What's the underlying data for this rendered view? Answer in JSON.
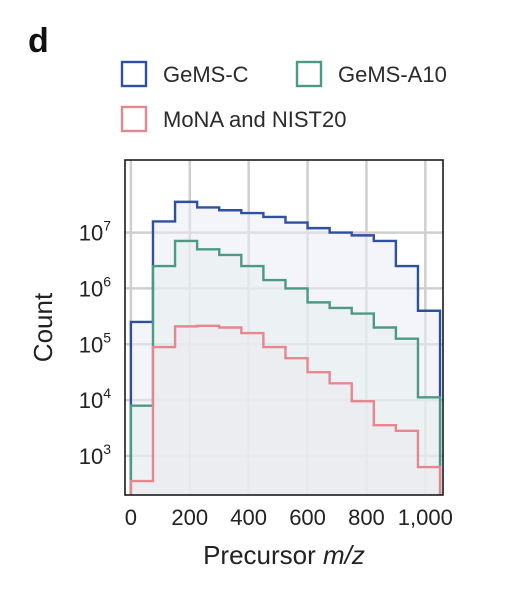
{
  "panel_label": "d",
  "chart_data": {
    "type": "histogram",
    "title": "",
    "xlabel_prefix": "Precursor ",
    "xlabel_italic": "m/z",
    "ylabel": "Count",
    "yscale": "log",
    "xlim": [
      -20,
      1060
    ],
    "ylim_log10": [
      2.3,
      8.3
    ],
    "grid": true,
    "legend_position": "top",
    "x_ticks": [
      0,
      200,
      400,
      600,
      800,
      1000
    ],
    "x_tick_labels": [
      "0",
      "200",
      "400",
      "600",
      "800",
      "1,000"
    ],
    "y_ticks_exp": [
      3,
      4,
      5,
      6,
      7
    ],
    "y_tick_base": "10",
    "bin_edges": [
      0,
      75,
      150,
      225,
      300,
      375,
      450,
      525,
      600,
      675,
      750,
      825,
      900,
      975,
      1050
    ],
    "series": [
      {
        "name": "GeMS-C",
        "color": "#2f4fa0",
        "fill": "#e9ecf6",
        "log10_values": [
          5.4,
          7.2,
          7.55,
          7.45,
          7.4,
          7.35,
          7.28,
          7.18,
          7.08,
          7.0,
          6.95,
          6.85,
          6.4,
          5.6
        ]
      },
      {
        "name": "GeMS-A10",
        "color": "#4c9a84",
        "fill": "#e6eeee",
        "log10_values": [
          3.9,
          6.4,
          6.85,
          6.7,
          6.6,
          6.4,
          6.15,
          6.0,
          5.75,
          5.65,
          5.55,
          5.3,
          5.1,
          4.05
        ]
      },
      {
        "name": "MoNA and NIST20",
        "color": "#e6878f",
        "fill": "#ece9ee",
        "log10_values": [
          2.55,
          4.95,
          5.32,
          5.33,
          5.3,
          5.2,
          4.95,
          4.75,
          4.5,
          4.3,
          3.98,
          3.55,
          3.45,
          2.8
        ]
      }
    ]
  }
}
